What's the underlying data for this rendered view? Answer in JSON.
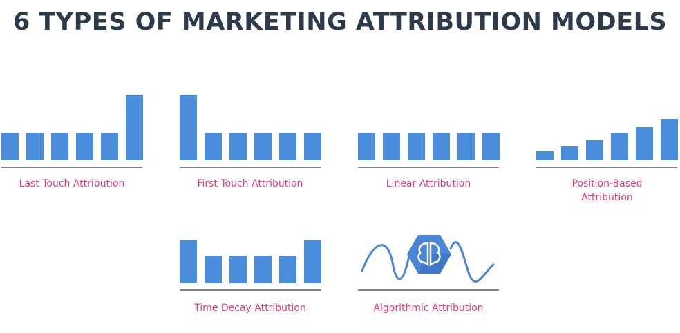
{
  "header": {
    "title": "6 TYPES OF MARKETING ATTRIBUTION MODELS"
  },
  "models": [
    {
      "label": "Last Touch Attribution"
    },
    {
      "label": "First Touch Attribution"
    },
    {
      "label": "Linear Attribution"
    },
    {
      "label": "Position-Based Attribution"
    },
    {
      "label": "Time Decay Attribution"
    },
    {
      "label": "Algorithmic Attribution"
    }
  ]
}
